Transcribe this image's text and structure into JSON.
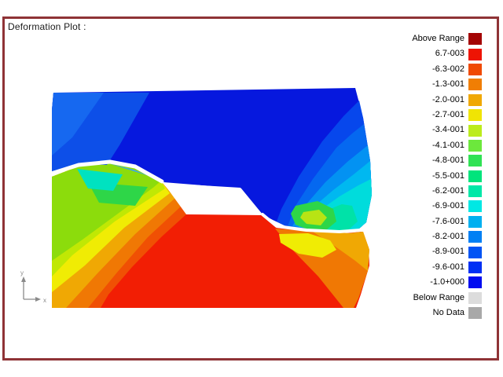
{
  "title": "Deformation Plot :",
  "frame": {
    "border_color": "#8F3336"
  },
  "axes": {
    "x_label": "x",
    "y_label": "y",
    "color": "#8A8A8A"
  },
  "legend": {
    "items": [
      {
        "label": "Above Range",
        "color": "#A40404"
      },
      {
        "label": "6.7-003",
        "color": "#EE1404"
      },
      {
        "label": "-6.3-002",
        "color": "#F04A04"
      },
      {
        "label": "-1.3-001",
        "color": "#F07E04"
      },
      {
        "label": "-2.0-001",
        "color": "#F0A804"
      },
      {
        "label": "-2.7-001",
        "color": "#F0E404"
      },
      {
        "label": "-3.4-001",
        "color": "#BCEC1C"
      },
      {
        "label": "-4.1-001",
        "color": "#6CE83C"
      },
      {
        "label": "-4.8-001",
        "color": "#30E254"
      },
      {
        "label": "-5.5-001",
        "color": "#00E47C"
      },
      {
        "label": "-6.2-001",
        "color": "#00E8A8"
      },
      {
        "label": "-6.9-001",
        "color": "#00E8E4"
      },
      {
        "label": "-7.6-001",
        "color": "#00B0F0"
      },
      {
        "label": "-8.2-001",
        "color": "#0080F4"
      },
      {
        "label": "-8.9-001",
        "color": "#0054F4"
      },
      {
        "label": "-9.6-001",
        "color": "#0030F4"
      },
      {
        "label": "-1.0+000",
        "color": "#000CF0"
      },
      {
        "label": "Below Range",
        "color": "#DCDCDC"
      },
      {
        "label": "No Data",
        "color": "#A8A8A8"
      }
    ]
  },
  "palette": {
    "white": "#FFFFFF",
    "deep_blue": "#0618DE",
    "mid_blue": "#0D4FE8",
    "light_blue": "#1668F0",
    "sliver_blue": "#3FA4EC",
    "band_blue1": "#0747EC",
    "band_blue2": "#0568F0",
    "band_blue3": "#0392F2",
    "azure": "#00B8F0",
    "cyan": "#00DCDC",
    "teal": "#00E2A8",
    "green": "#2ED648",
    "yg_blob": "#B8E414",
    "patch_cyan": "#00E2C0",
    "slope_green": "#8CDC0C",
    "yellow_green": "#C0E804",
    "yellow": "#F0EC04",
    "amber": "#F0A804",
    "orange": "#F07804",
    "deep_orange": "#F05004",
    "red": "#F21E04"
  },
  "chart_data": {
    "type": "heatmap",
    "title": "Deformation Plot :",
    "subtype": "finite-element deformation contour plot with color-level legend",
    "legend_levels": [
      "Above Range",
      "6.7-003",
      "-6.3-002",
      "-1.3-001",
      "-2.0-001",
      "-2.7-001",
      "-3.4-001",
      "-4.1-001",
      "-4.8-001",
      "-5.5-001",
      "-6.2-001",
      "-6.9-001",
      "-7.6-001",
      "-8.2-001",
      "-8.9-001",
      "-9.6-001",
      "-1.0+000",
      "Below Range",
      "No Data"
    ],
    "legend_colors": [
      "#A40404",
      "#EE1404",
      "#F04A04",
      "#F07E04",
      "#F0A804",
      "#F0E404",
      "#BCEC1C",
      "#6CE83C",
      "#30E254",
      "#00E47C",
      "#00E8A8",
      "#00E8E4",
      "#00B0F0",
      "#0080F4",
      "#0054F4",
      "#0030F4",
      "#000CF0",
      "#DCDCDC",
      "#A8A8A8"
    ],
    "value_range": [
      "6.7e-3",
      "-1.0e+0"
    ],
    "legend_position": "right",
    "regions": [
      {
        "area": "upper block",
        "levels": "blue range (-1.0+000 to -7.6-001)",
        "detail": "lighter blue bands in upper-left corner; blue-to-cyan bands along the bulged right edge with a small green/yellow-green pocket near its lower right"
      },
      {
        "area": "central void",
        "levels": "none",
        "detail": "white sheared parallelogram (excavated zone) between upper and lower blocks"
      },
      {
        "area": "lower block",
        "levels": "red range (6.7-003 to -1.3-001)",
        "detail": "green-yellow-orange banded slope on the left side with cyan/green patches near the crest; yellow/amber/orange pocket at the right toe; straight bottom edge"
      },
      {
        "area": "interfaces",
        "levels": "none",
        "detail": "thin white gaps (cracks) separating the blocks"
      }
    ],
    "axes": {
      "triad": "x right, y up",
      "position": "bottom-left"
    }
  }
}
